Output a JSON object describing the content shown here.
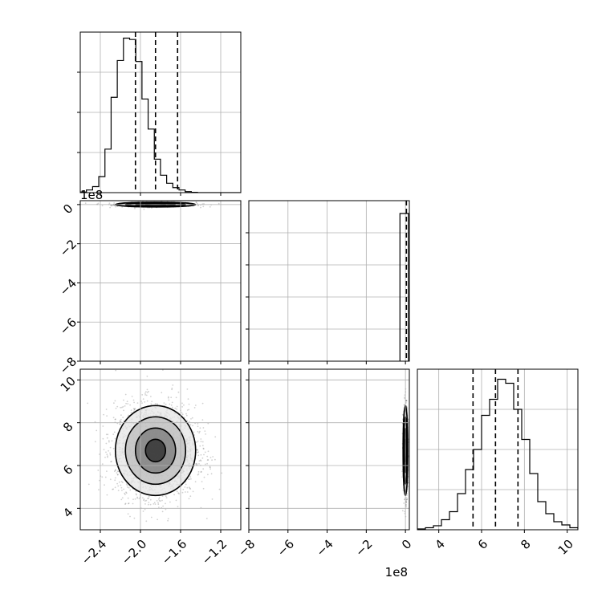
{
  "chart_data": {
    "type": "corner",
    "grid": true,
    "panels": [
      {
        "id": "hist-p0",
        "type": "histogram",
        "xlim": [
          -2.6,
          -1.0
        ],
        "bins_start": -2.6,
        "bin_width": 0.0615,
        "counts": [
          2,
          8,
          18,
          48,
          130,
          285,
          395,
          462,
          458,
          392,
          280,
          190,
          100,
          52,
          28,
          15,
          8,
          3,
          1,
          0,
          0,
          0,
          0,
          0,
          0,
          0
        ],
        "ymax": 480,
        "quantiles": [
          -2.05,
          -1.85,
          -1.63
        ],
        "y_grid": [
          120,
          240,
          360
        ]
      },
      {
        "id": "scatter-p0-p1",
        "type": "scatter",
        "xlim": [
          -2.6,
          -1.0
        ],
        "ylim": [
          -8,
          0.2
        ],
        "ytick_values": [
          0,
          -2,
          -4,
          -6,
          -8
        ],
        "ytick_labels": [
          "0",
          "−2",
          "−4",
          "−6",
          "−8"
        ],
        "y_offset_label": "1e8",
        "center": [
          -1.85,
          0.0
        ],
        "spread": [
          0.2,
          0.06
        ]
      },
      {
        "id": "hist-p1",
        "type": "histogram",
        "xlim": [
          -8,
          0.2
        ],
        "spike_x": -0.28,
        "quantiles": [
          0.0
        ],
        "y_grid": [
          0.2,
          0.4,
          0.6,
          0.8
        ]
      },
      {
        "id": "scatter-p0-p2",
        "type": "scatter",
        "xlim": [
          -2.6,
          -1.0
        ],
        "ylim": [
          3,
          10.5
        ],
        "xtick_values": [
          -2.4,
          -2.0,
          -1.6,
          -1.2
        ],
        "xtick_labels": [
          "−2.4",
          "−2.0",
          "−1.6",
          "−1.2"
        ],
        "ytick_values": [
          4,
          6,
          8,
          10
        ],
        "ytick_labels": [
          "4",
          "6",
          "8",
          "10"
        ],
        "center": [
          -1.85,
          6.7
        ],
        "spread": [
          0.2,
          1.05
        ]
      },
      {
        "id": "scatter-p1-p2",
        "type": "scatter",
        "xlim": [
          -8,
          0.2
        ],
        "ylim": [
          3,
          10.5
        ],
        "xtick_values": [
          -8,
          -6,
          -4,
          -2,
          0
        ],
        "xtick_labels": [
          "−8",
          "−6",
          "−4",
          "−2",
          "0"
        ],
        "x_offset_label": "1e8",
        "center": [
          0.0,
          6.7
        ],
        "spread": [
          0.06,
          1.05
        ]
      },
      {
        "id": "hist-p2",
        "type": "histogram",
        "xlim": [
          3,
          10.5
        ],
        "bins_start": 3.0,
        "bin_width": 0.375,
        "counts": [
          2,
          5,
          10,
          25,
          45,
          90,
          150,
          200,
          285,
          325,
          375,
          365,
          300,
          225,
          140,
          70,
          40,
          20,
          12,
          5,
          3
        ],
        "ymax": 400,
        "quantiles": [
          5.6,
          6.65,
          7.7
        ],
        "xtick_values": [
          4,
          6,
          8,
          10
        ],
        "xtick_labels": [
          "4",
          "6",
          "8",
          "10"
        ],
        "y_grid": [
          100,
          200,
          300
        ]
      }
    ]
  }
}
